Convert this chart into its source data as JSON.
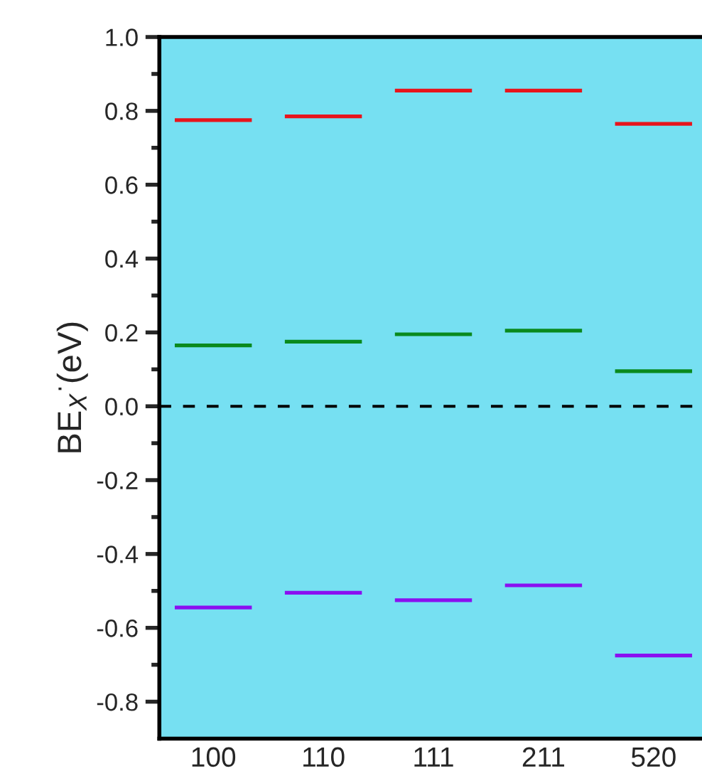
{
  "chart_data": {
    "type": "bar",
    "ylabel": "BE$_{X}$$^{·}$(eV)",
    "categories": [
      "100",
      "110",
      "111",
      "211",
      "520"
    ],
    "series": [
      {
        "color": "#e8141c",
        "base": [
          0.77,
          0.78,
          0.85,
          0.85,
          0.76
        ],
        "values": [
          0.01,
          0.01,
          0.01,
          0.01,
          0.01
        ]
      },
      {
        "color": "#0a8a1e",
        "base": [
          0.16,
          0.17,
          0.19,
          0.2,
          0.09
        ],
        "values": [
          0.01,
          0.01,
          0.01,
          0.01,
          0.01
        ]
      },
      {
        "color": "#8a10f0",
        "base": [
          -0.55,
          -0.51,
          -0.53,
          -0.49,
          -0.68
        ],
        "values": [
          0.01,
          0.01,
          0.01,
          0.01,
          0.01
        ]
      }
    ],
    "ylim": [
      -0.9,
      1.0
    ],
    "yticks": [
      -0.8,
      -0.6,
      -0.4,
      -0.2,
      {
        "value": 0,
        "label": "0.0"
      },
      0.2,
      0.4,
      0.6,
      0.8,
      {
        "value": 1,
        "label": "1.0"
      }
    ],
    "ref_lines": [
      {
        "axis": "y",
        "value": 0,
        "color": "#000000",
        "line_style": "dashed"
      }
    ],
    "grid": false,
    "legend": false
  }
}
